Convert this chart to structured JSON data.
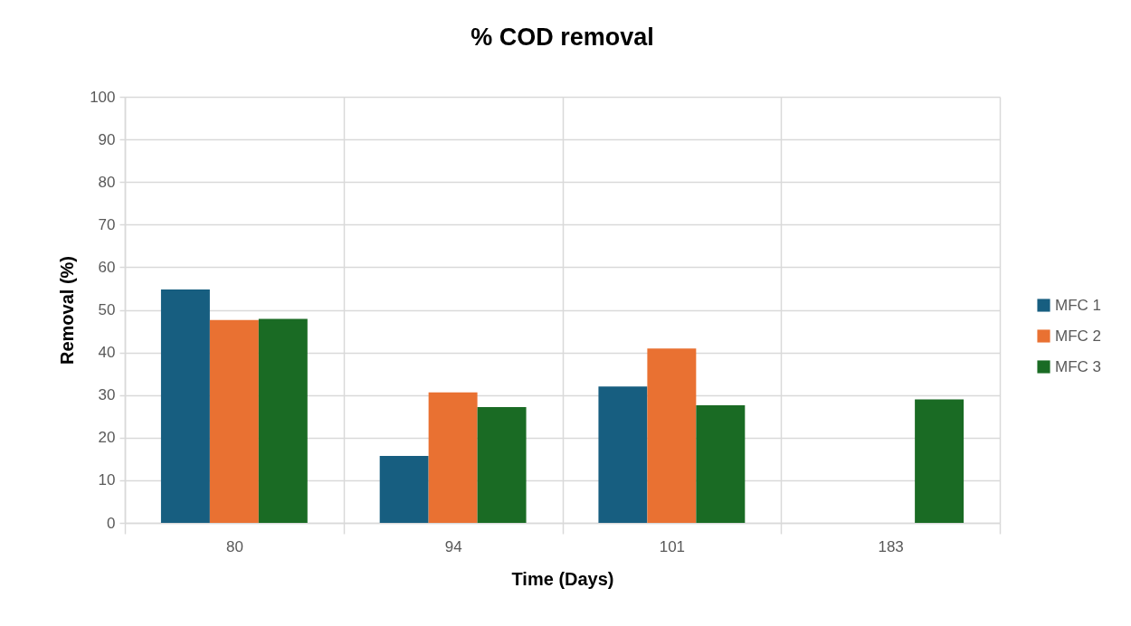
{
  "chart_data": {
    "type": "bar",
    "title": "% COD removal",
    "xlabel": "Time (Days)",
    "ylabel": "Removal (%)",
    "categories": [
      "80",
      "94",
      "101",
      "183"
    ],
    "series": [
      {
        "name": "MFC 1",
        "color": "#175e80",
        "values": [
          54.8,
          15.7,
          32.0,
          null
        ]
      },
      {
        "name": "MFC 2",
        "color": "#e97132",
        "values": [
          47.6,
          30.6,
          40.9,
          null
        ]
      },
      {
        "name": "MFC 3",
        "color": "#1a6b24",
        "values": [
          47.9,
          27.2,
          27.6,
          29.0
        ]
      }
    ],
    "ylim": [
      0,
      100
    ],
    "yticks": [
      0,
      10,
      20,
      30,
      40,
      50,
      60,
      70,
      80,
      90,
      100
    ],
    "grid": true,
    "legend": "right"
  }
}
